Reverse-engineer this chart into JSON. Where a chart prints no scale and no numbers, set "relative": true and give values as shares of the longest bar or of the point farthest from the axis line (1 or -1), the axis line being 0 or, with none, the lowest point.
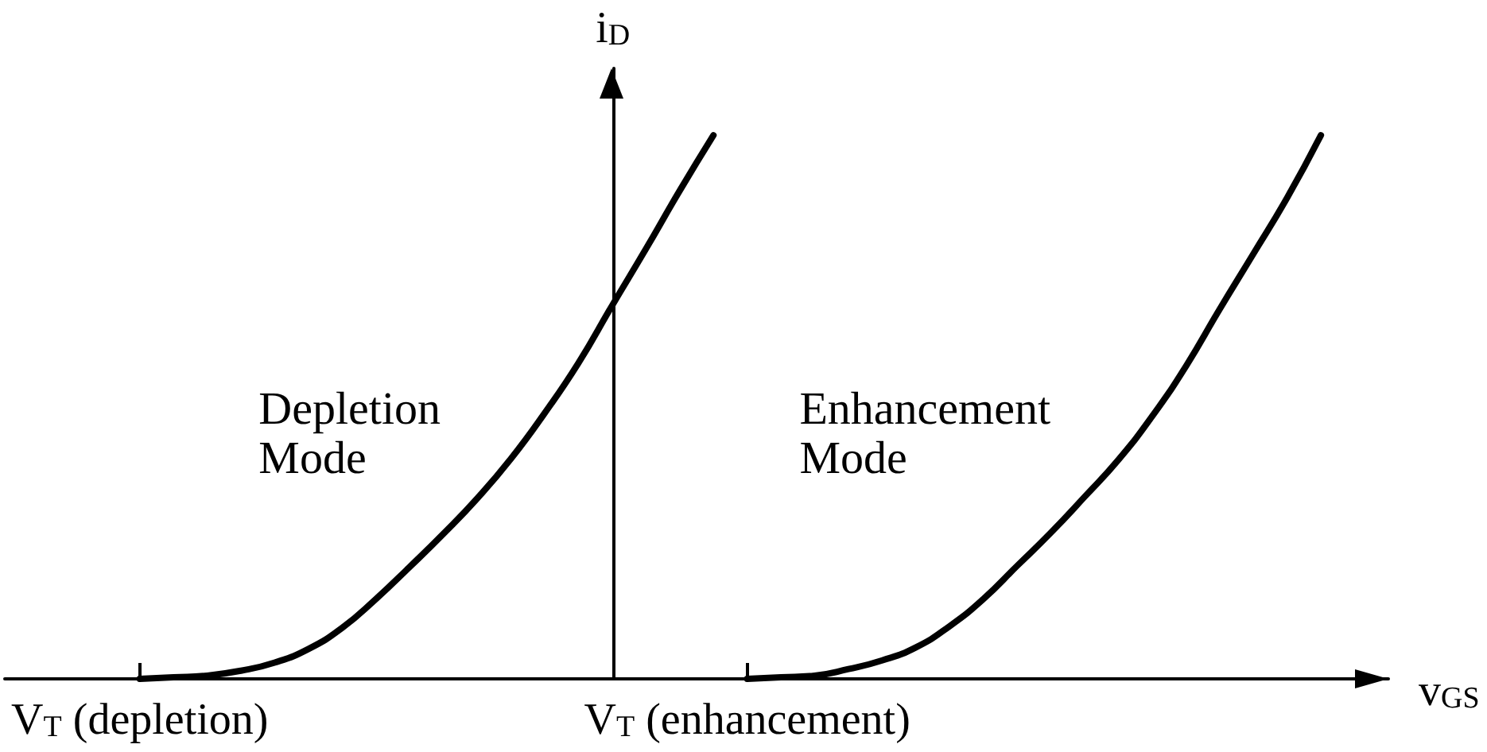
{
  "chart_data": {
    "type": "line",
    "xlabel": "v$_{GS}$",
    "ylabel": "i$_{D}$",
    "relative": true,
    "marker": "none",
    "categories": [
      null,
      null,
      null,
      null,
      "V$_{T}$ (depletion)",
      null,
      null,
      null,
      null,
      null,
      null,
      null,
      null,
      null,
      null,
      null,
      null,
      null,
      null,
      null,
      null,
      null,
      "V$_{T}$ (enhancement)",
      null,
      null,
      null,
      null,
      null,
      null,
      null,
      null,
      null,
      null,
      null,
      null,
      null,
      null,
      null,
      null,
      null,
      null,
      null
    ],
    "series": [
      {
        "name": "Depletion Mode",
        "color": "#000000",
        "values": [
          null,
          null,
          null,
          null,
          0,
          0.003,
          0.006,
          0.015,
          0.03,
          0.055,
          0.094,
          0.147,
          0.206,
          0.267,
          0.332,
          0.405,
          0.489,
          0.581,
          0.687,
          0.791,
          0.898,
          1,
          null,
          null,
          null,
          null,
          null,
          null,
          null,
          null,
          null,
          null,
          null,
          null,
          null,
          null,
          null,
          null,
          null,
          null,
          null,
          null
        ]
      },
      {
        "name": "Enhancement Mode",
        "color": "#000000",
        "values": [
          null,
          null,
          null,
          null,
          null,
          null,
          null,
          null,
          null,
          null,
          null,
          null,
          null,
          null,
          null,
          null,
          null,
          null,
          null,
          null,
          null,
          null,
          0,
          0.003,
          0.006,
          0.018,
          0.034,
          0.058,
          0.097,
          0.147,
          0.208,
          0.269,
          0.335,
          0.403,
          0.483,
          0.575,
          0.68,
          0.782,
          0.885,
          1,
          null,
          null
        ]
      }
    ]
  }
}
